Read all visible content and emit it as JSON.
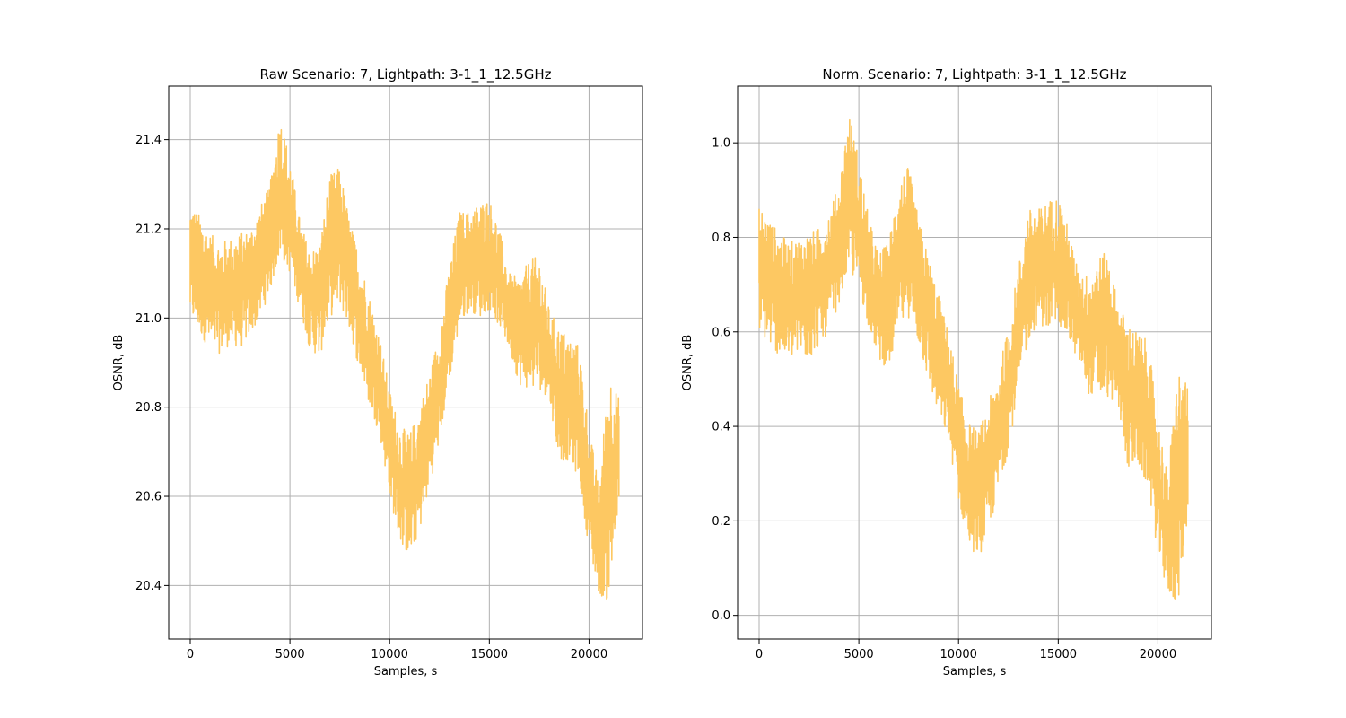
{
  "chart_data": [
    {
      "type": "line",
      "title": "Raw Scenario: 7, Lightpath: 3-1_1_12.5GHz",
      "xlabel": "Samples, s",
      "ylabel": "OSNR, dB",
      "xlim": [
        -1080,
        22680
      ],
      "ylim": [
        20.28,
        21.52
      ],
      "xticks": [
        0,
        5000,
        10000,
        15000,
        20000
      ],
      "xtick_labels": [
        "0",
        "5000",
        "10000",
        "15000",
        "20000"
      ],
      "yticks": [
        20.4,
        20.6,
        20.8,
        21.0,
        21.2,
        21.4
      ],
      "ytick_labels": [
        "20.4",
        "20.6",
        "20.8",
        "21.0",
        "21.2",
        "21.4"
      ],
      "grid": true,
      "color": "#fdc862",
      "series": [
        {
          "x": [
            0,
            500,
            1000,
            1500,
            2000,
            2500,
            3000,
            3500,
            4000,
            4500,
            5000,
            5500,
            6000,
            6500,
            7000,
            7500,
            8000,
            8500,
            9000,
            9500,
            10000,
            10500,
            11000,
            11500,
            12000,
            12500,
            13000,
            13500,
            14000,
            14500,
            15000,
            15500,
            16000,
            16500,
            17000,
            17500,
            18000,
            18500,
            19000,
            19500,
            20000,
            20500,
            21000,
            21500
          ],
          "low": [
            21.0,
            20.96,
            20.93,
            20.92,
            20.94,
            20.93,
            20.96,
            21.0,
            21.06,
            21.14,
            21.1,
            21.02,
            20.93,
            20.91,
            21.0,
            21.03,
            20.97,
            20.88,
            20.8,
            20.74,
            20.6,
            20.5,
            20.46,
            20.52,
            20.62,
            20.72,
            20.86,
            20.98,
            21.02,
            21.0,
            21.02,
            20.98,
            20.93,
            20.85,
            20.84,
            20.84,
            20.82,
            20.68,
            20.68,
            20.64,
            20.48,
            20.38,
            20.36,
            20.57
          ],
          "high": [
            21.26,
            21.23,
            21.19,
            21.17,
            21.18,
            21.19,
            21.2,
            21.25,
            21.3,
            21.46,
            21.36,
            21.22,
            21.15,
            21.17,
            21.32,
            21.34,
            21.22,
            21.14,
            21.05,
            20.96,
            20.84,
            20.76,
            20.74,
            20.8,
            20.88,
            20.97,
            21.12,
            21.24,
            21.24,
            21.26,
            21.27,
            21.2,
            21.1,
            21.09,
            21.13,
            21.14,
            21.02,
            20.98,
            20.96,
            20.94,
            20.76,
            20.62,
            20.89,
            20.82
          ]
        }
      ]
    },
    {
      "type": "line",
      "title": "Norm. Scenario: 7, Lightpath: 3-1_1_12.5GHz",
      "xlabel": "Samples, s",
      "ylabel": "OSNR, dB",
      "xlim": [
        -1080,
        22680
      ],
      "ylim": [
        -0.05,
        1.12
      ],
      "xticks": [
        0,
        5000,
        10000,
        15000,
        20000
      ],
      "xtick_labels": [
        "0",
        "5000",
        "10000",
        "15000",
        "20000"
      ],
      "yticks": [
        0.0,
        0.2,
        0.4,
        0.6,
        0.8,
        1.0
      ],
      "ytick_labels": [
        "0.0",
        "0.2",
        "0.4",
        "0.6",
        "0.8",
        "1.0"
      ],
      "grid": true,
      "color": "#fdc862",
      "series": [
        {
          "x": [
            0,
            500,
            1000,
            1500,
            2000,
            2500,
            3000,
            3500,
            4000,
            4500,
            5000,
            5500,
            6000,
            6500,
            7000,
            7500,
            8000,
            8500,
            9000,
            9500,
            10000,
            10500,
            11000,
            11500,
            12000,
            12500,
            13000,
            13500,
            14000,
            14500,
            15000,
            15500,
            16000,
            16500,
            17000,
            17500,
            18000,
            18500,
            19000,
            19500,
            20000,
            20500,
            21000,
            21500
          ],
          "low": [
            0.6,
            0.57,
            0.55,
            0.54,
            0.55,
            0.54,
            0.57,
            0.6,
            0.66,
            0.73,
            0.69,
            0.61,
            0.54,
            0.52,
            0.6,
            0.63,
            0.57,
            0.49,
            0.42,
            0.37,
            0.24,
            0.15,
            0.12,
            0.17,
            0.26,
            0.35,
            0.47,
            0.58,
            0.62,
            0.6,
            0.62,
            0.58,
            0.54,
            0.47,
            0.46,
            0.46,
            0.44,
            0.31,
            0.31,
            0.27,
            0.13,
            0.04,
            0.02,
            0.21
          ],
          "high": [
            0.87,
            0.84,
            0.81,
            0.79,
            0.8,
            0.81,
            0.82,
            0.86,
            0.91,
            1.07,
            0.97,
            0.84,
            0.77,
            0.79,
            0.93,
            0.95,
            0.84,
            0.76,
            0.68,
            0.6,
            0.49,
            0.41,
            0.39,
            0.45,
            0.52,
            0.61,
            0.74,
            0.86,
            0.86,
            0.88,
            0.89,
            0.82,
            0.73,
            0.72,
            0.76,
            0.77,
            0.66,
            0.62,
            0.6,
            0.58,
            0.42,
            0.3,
            0.53,
            0.48
          ]
        }
      ]
    }
  ]
}
